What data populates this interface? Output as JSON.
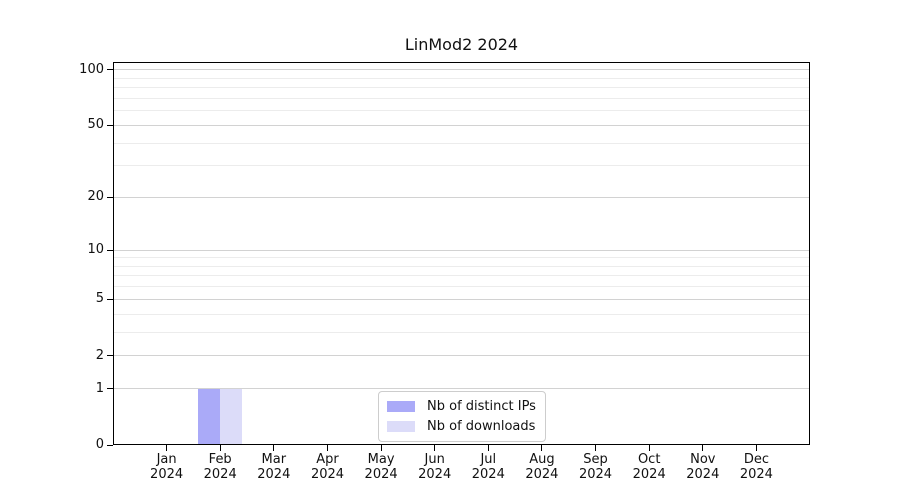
{
  "chart_data": {
    "type": "bar",
    "title": "LinMod2 2024",
    "categories": [
      "Jan 2024",
      "Feb 2024",
      "Mar 2024",
      "Apr 2024",
      "May 2024",
      "Jun 2024",
      "Jul 2024",
      "Aug 2024",
      "Sep 2024",
      "Oct 2024",
      "Nov 2024",
      "Dec 2024"
    ],
    "series": [
      {
        "name": "Nb of distinct IPs",
        "color": "#aaaaf8",
        "values": [
          0,
          1,
          0,
          0,
          0,
          0,
          0,
          0,
          0,
          0,
          0,
          0
        ]
      },
      {
        "name": "Nb of downloads",
        "color": "#dcdcf9",
        "values": [
          0,
          1,
          0,
          0,
          0,
          0,
          0,
          0,
          0,
          0,
          0,
          0
        ]
      }
    ],
    "xlabel": "",
    "ylabel": "",
    "yscale": "log1p",
    "ylim": [
      0,
      110
    ],
    "y_major_ticks": [
      0,
      1,
      2,
      5,
      10,
      20,
      50,
      100
    ],
    "y_minor_gridlines": [
      3,
      4,
      6,
      7,
      8,
      9,
      30,
      40,
      60,
      70,
      80,
      90
    ],
    "grid": true,
    "legend_position": "lower center"
  }
}
